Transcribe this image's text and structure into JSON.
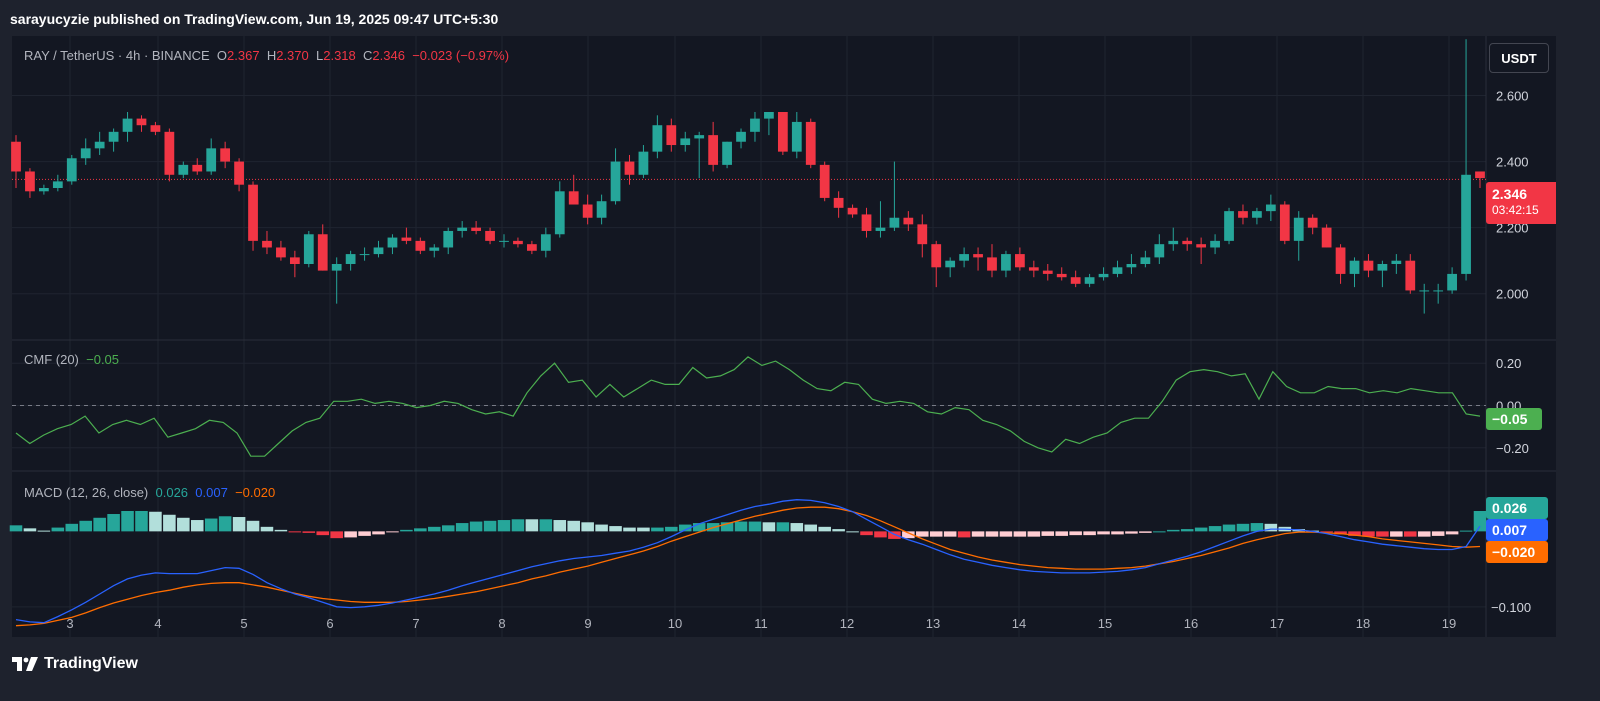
{
  "publisher_line": "sarayucyzie published on TradingView.com, Jun 19, 2025 09:47 UTC+5:30",
  "header": {
    "symbol": "RAY / TetherUS · 4h · BINANCE",
    "o_label": "O",
    "o_value": "2.367",
    "h_label": "H",
    "h_value": "2.370",
    "l_label": "L",
    "l_value": "2.318",
    "c_label": "C",
    "c_value": "2.346",
    "change": "−0.023 (−0.97%)"
  },
  "currency_button": "USDT",
  "price_tag": {
    "value": "2.346",
    "countdown": "03:42:15"
  },
  "cmf_legend": {
    "label": "CMF (20)",
    "value": "−0.05"
  },
  "cmf_tag": "−0.05",
  "macd_legend": {
    "label": "MACD (12, 26, close)",
    "hist": "0.026",
    "macd": "0.007",
    "signal": "−0.020"
  },
  "macd_tags": {
    "hist": "0.026",
    "macd": "0.007",
    "signal": "−0.020"
  },
  "footer": {
    "logo_text": "TradingView"
  },
  "colors": {
    "up": "#26a69a",
    "down": "#f23645",
    "cmf": "#4caf50",
    "macd": "#2962ff",
    "signal": "#ff6d00",
    "hist_up_light": "#b2dfdb",
    "hist_down_light": "#ffcdd2"
  },
  "chart_data": [
    {
      "type": "candlestick",
      "title": "RAY / TetherUS · 4h · BINANCE",
      "x_tick_labels": [
        "3",
        "4",
        "5",
        "6",
        "7",
        "8",
        "9",
        "10",
        "11",
        "12",
        "13",
        "14",
        "15",
        "16",
        "17",
        "18",
        "19"
      ],
      "y_tick_labels": [
        "2.000",
        "2.200",
        "2.400",
        "2.600"
      ],
      "ylim": [
        1.86,
        2.78
      ],
      "last_price_line": 2.346,
      "ohlc": [
        [
          2.46,
          2.48,
          2.32,
          2.37
        ],
        [
          2.37,
          2.38,
          2.29,
          2.31
        ],
        [
          2.31,
          2.33,
          2.3,
          2.32
        ],
        [
          2.32,
          2.36,
          2.31,
          2.34
        ],
        [
          2.34,
          2.42,
          2.33,
          2.41
        ],
        [
          2.41,
          2.47,
          2.39,
          2.44
        ],
        [
          2.44,
          2.49,
          2.42,
          2.46
        ],
        [
          2.46,
          2.5,
          2.43,
          2.49
        ],
        [
          2.49,
          2.55,
          2.46,
          2.53
        ],
        [
          2.53,
          2.54,
          2.49,
          2.51
        ],
        [
          2.51,
          2.52,
          2.48,
          2.49
        ],
        [
          2.49,
          2.5,
          2.34,
          2.36
        ],
        [
          2.36,
          2.4,
          2.35,
          2.39
        ],
        [
          2.39,
          2.41,
          2.36,
          2.37
        ],
        [
          2.37,
          2.47,
          2.36,
          2.44
        ],
        [
          2.44,
          2.46,
          2.38,
          2.4
        ],
        [
          2.4,
          2.41,
          2.31,
          2.33
        ],
        [
          2.33,
          2.34,
          2.13,
          2.16
        ],
        [
          2.16,
          2.19,
          2.12,
          2.14
        ],
        [
          2.14,
          2.16,
          2.1,
          2.11
        ],
        [
          2.11,
          2.13,
          2.05,
          2.09
        ],
        [
          2.09,
          2.19,
          2.08,
          2.18
        ],
        [
          2.18,
          2.21,
          2.07,
          2.07
        ],
        [
          2.07,
          2.11,
          1.97,
          2.09
        ],
        [
          2.09,
          2.13,
          2.07,
          2.12
        ],
        [
          2.12,
          2.14,
          2.1,
          2.12
        ],
        [
          2.12,
          2.16,
          2.11,
          2.14
        ],
        [
          2.14,
          2.18,
          2.12,
          2.17
        ],
        [
          2.17,
          2.2,
          2.15,
          2.16
        ],
        [
          2.16,
          2.17,
          2.12,
          2.13
        ],
        [
          2.13,
          2.15,
          2.11,
          2.14
        ],
        [
          2.14,
          2.2,
          2.12,
          2.19
        ],
        [
          2.19,
          2.22,
          2.17,
          2.2
        ],
        [
          2.2,
          2.22,
          2.18,
          2.19
        ],
        [
          2.19,
          2.2,
          2.15,
          2.16
        ],
        [
          2.16,
          2.18,
          2.14,
          2.16
        ],
        [
          2.16,
          2.17,
          2.14,
          2.15
        ],
        [
          2.15,
          2.16,
          2.12,
          2.13
        ],
        [
          2.13,
          2.2,
          2.11,
          2.18
        ],
        [
          2.18,
          2.34,
          2.17,
          2.31
        ],
        [
          2.31,
          2.36,
          2.27,
          2.27
        ],
        [
          2.27,
          2.3,
          2.21,
          2.23
        ],
        [
          2.23,
          2.3,
          2.21,
          2.28
        ],
        [
          2.28,
          2.44,
          2.27,
          2.4
        ],
        [
          2.4,
          2.42,
          2.33,
          2.36
        ],
        [
          2.36,
          2.45,
          2.35,
          2.43
        ],
        [
          2.43,
          2.54,
          2.41,
          2.51
        ],
        [
          2.51,
          2.53,
          2.43,
          2.45
        ],
        [
          2.45,
          2.49,
          2.43,
          2.47
        ],
        [
          2.47,
          2.49,
          2.35,
          2.48
        ],
        [
          2.48,
          2.52,
          2.37,
          2.39
        ],
        [
          2.39,
          2.46,
          2.38,
          2.46
        ],
        [
          2.46,
          2.5,
          2.44,
          2.49
        ],
        [
          2.49,
          2.55,
          2.46,
          2.53
        ],
        [
          2.53,
          2.55,
          2.48,
          2.55
        ],
        [
          2.55,
          2.55,
          2.42,
          2.43
        ],
        [
          2.43,
          2.55,
          2.41,
          2.52
        ],
        [
          2.52,
          2.53,
          2.38,
          2.39
        ],
        [
          2.39,
          2.4,
          2.28,
          2.29
        ],
        [
          2.29,
          2.31,
          2.23,
          2.26
        ],
        [
          2.26,
          2.27,
          2.23,
          2.24
        ],
        [
          2.24,
          2.26,
          2.17,
          2.19
        ],
        [
          2.19,
          2.28,
          2.17,
          2.2
        ],
        [
          2.2,
          2.4,
          2.19,
          2.23
        ],
        [
          2.23,
          2.25,
          2.19,
          2.21
        ],
        [
          2.21,
          2.24,
          2.11,
          2.15
        ],
        [
          2.15,
          2.16,
          2.02,
          2.08
        ],
        [
          2.08,
          2.11,
          2.05,
          2.1
        ],
        [
          2.1,
          2.14,
          2.08,
          2.12
        ],
        [
          2.12,
          2.14,
          2.07,
          2.11
        ],
        [
          2.11,
          2.15,
          2.05,
          2.07
        ],
        [
          2.07,
          2.13,
          2.05,
          2.12
        ],
        [
          2.12,
          2.14,
          2.07,
          2.08
        ],
        [
          2.08,
          2.1,
          2.05,
          2.07
        ],
        [
          2.07,
          2.09,
          2.04,
          2.06
        ],
        [
          2.06,
          2.08,
          2.04,
          2.05
        ],
        [
          2.05,
          2.07,
          2.02,
          2.03
        ],
        [
          2.03,
          2.06,
          2.02,
          2.05
        ],
        [
          2.05,
          2.08,
          2.04,
          2.06
        ],
        [
          2.06,
          2.1,
          2.05,
          2.08
        ],
        [
          2.08,
          2.12,
          2.06,
          2.09
        ],
        [
          2.09,
          2.13,
          2.08,
          2.11
        ],
        [
          2.11,
          2.18,
          2.09,
          2.15
        ],
        [
          2.15,
          2.2,
          2.13,
          2.16
        ],
        [
          2.16,
          2.17,
          2.13,
          2.15
        ],
        [
          2.15,
          2.17,
          2.09,
          2.14
        ],
        [
          2.14,
          2.18,
          2.12,
          2.16
        ],
        [
          2.16,
          2.26,
          2.15,
          2.25
        ],
        [
          2.25,
          2.27,
          2.21,
          2.23
        ],
        [
          2.23,
          2.26,
          2.21,
          2.25
        ],
        [
          2.25,
          2.3,
          2.22,
          2.27
        ],
        [
          2.27,
          2.28,
          2.15,
          2.16
        ],
        [
          2.16,
          2.25,
          2.1,
          2.23
        ],
        [
          2.23,
          2.24,
          2.18,
          2.2
        ],
        [
          2.2,
          2.21,
          2.14,
          2.14
        ],
        [
          2.14,
          2.15,
          2.03,
          2.06
        ],
        [
          2.06,
          2.11,
          2.02,
          2.1
        ],
        [
          2.1,
          2.12,
          2.05,
          2.07
        ],
        [
          2.07,
          2.1,
          2.02,
          2.09
        ],
        [
          2.09,
          2.12,
          2.06,
          2.1
        ],
        [
          2.1,
          2.12,
          2.0,
          2.01
        ],
        [
          2.01,
          2.03,
          1.94,
          2.01
        ],
        [
          2.01,
          2.03,
          1.97,
          2.01
        ],
        [
          2.01,
          2.08,
          2.0,
          2.06
        ],
        [
          2.06,
          2.77,
          2.04,
          2.36
        ],
        [
          2.37,
          2.37,
          2.32,
          2.35
        ]
      ]
    },
    {
      "type": "line",
      "title": "CMF (20)",
      "y_tick_labels": [
        "0.20",
        "0.00",
        "−0.20"
      ],
      "ylim": [
        -0.31,
        0.31
      ],
      "reference_line": 0,
      "values": [
        -0.13,
        -0.18,
        -0.14,
        -0.11,
        -0.09,
        -0.05,
        -0.13,
        -0.09,
        -0.07,
        -0.09,
        -0.06,
        -0.15,
        -0.13,
        -0.11,
        -0.07,
        -0.08,
        -0.13,
        -0.24,
        -0.24,
        -0.18,
        -0.12,
        -0.08,
        -0.06,
        0.02,
        0.02,
        0.03,
        0.01,
        0.02,
        0.01,
        -0.01,
        0.0,
        0.02,
        0.01,
        -0.02,
        -0.04,
        -0.03,
        -0.05,
        0.06,
        0.14,
        0.2,
        0.11,
        0.12,
        0.04,
        0.1,
        0.04,
        0.08,
        0.12,
        0.1,
        0.1,
        0.18,
        0.13,
        0.14,
        0.17,
        0.23,
        0.19,
        0.21,
        0.17,
        0.12,
        0.08,
        0.07,
        0.11,
        0.1,
        0.03,
        0.01,
        0.02,
        0.01,
        -0.03,
        -0.04,
        -0.01,
        -0.02,
        -0.07,
        -0.09,
        -0.12,
        -0.17,
        -0.2,
        -0.22,
        -0.16,
        -0.18,
        -0.15,
        -0.13,
        -0.08,
        -0.06,
        -0.06,
        0.02,
        0.12,
        0.16,
        0.17,
        0.16,
        0.14,
        0.15,
        0.03,
        0.16,
        0.09,
        0.06,
        0.06,
        0.09,
        0.08,
        0.08,
        0.06,
        0.07,
        0.06,
        0.08,
        0.07,
        0.06,
        0.06,
        -0.04,
        -0.05
      ]
    },
    {
      "type": "line+histogram",
      "title": "MACD (12, 26, close)",
      "y_tick_labels": [
        "−0.100"
      ],
      "ylim": [
        -0.14,
        0.08
      ],
      "series_legend_values": {
        "histogram": "0.026",
        "macd": "0.007",
        "signal": "−0.020"
      },
      "macd": [
        -0.117,
        -0.12,
        -0.121,
        -0.113,
        -0.104,
        -0.094,
        -0.083,
        -0.072,
        -0.063,
        -0.058,
        -0.055,
        -0.056,
        -0.056,
        -0.056,
        -0.052,
        -0.048,
        -0.049,
        -0.057,
        -0.068,
        -0.076,
        -0.083,
        -0.088,
        -0.094,
        -0.1,
        -0.101,
        -0.1,
        -0.098,
        -0.095,
        -0.091,
        -0.087,
        -0.083,
        -0.078,
        -0.072,
        -0.067,
        -0.062,
        -0.057,
        -0.052,
        -0.047,
        -0.043,
        -0.039,
        -0.036,
        -0.034,
        -0.032,
        -0.029,
        -0.026,
        -0.021,
        -0.015,
        -0.007,
        0.002,
        0.01,
        0.016,
        0.022,
        0.028,
        0.033,
        0.036,
        0.04,
        0.042,
        0.041,
        0.038,
        0.033,
        0.026,
        0.016,
        0.006,
        -0.004,
        -0.011,
        -0.017,
        -0.024,
        -0.031,
        -0.037,
        -0.041,
        -0.045,
        -0.048,
        -0.051,
        -0.053,
        -0.054,
        -0.055,
        -0.055,
        -0.055,
        -0.054,
        -0.053,
        -0.051,
        -0.048,
        -0.043,
        -0.038,
        -0.033,
        -0.027,
        -0.02,
        -0.013,
        -0.006,
        0.0,
        0.003,
        0.003,
        0.002,
        0.0,
        -0.003,
        -0.007,
        -0.011,
        -0.014,
        -0.017,
        -0.019,
        -0.021,
        -0.023,
        -0.024,
        -0.024,
        -0.02,
        0.007
      ],
      "signal": [
        -0.125,
        -0.124,
        -0.122,
        -0.118,
        -0.114,
        -0.108,
        -0.101,
        -0.095,
        -0.09,
        -0.085,
        -0.081,
        -0.078,
        -0.074,
        -0.071,
        -0.069,
        -0.068,
        -0.068,
        -0.071,
        -0.074,
        -0.078,
        -0.082,
        -0.086,
        -0.089,
        -0.091,
        -0.093,
        -0.094,
        -0.094,
        -0.094,
        -0.093,
        -0.091,
        -0.089,
        -0.086,
        -0.083,
        -0.08,
        -0.076,
        -0.072,
        -0.068,
        -0.063,
        -0.059,
        -0.054,
        -0.05,
        -0.046,
        -0.041,
        -0.036,
        -0.031,
        -0.026,
        -0.02,
        -0.013,
        -0.007,
        -0.001,
        0.005,
        0.01,
        0.015,
        0.02,
        0.024,
        0.028,
        0.031,
        0.032,
        0.032,
        0.03,
        0.026,
        0.021,
        0.014,
        0.006,
        -0.002,
        -0.01,
        -0.017,
        -0.024,
        -0.029,
        -0.034,
        -0.038,
        -0.041,
        -0.044,
        -0.046,
        -0.048,
        -0.049,
        -0.05,
        -0.05,
        -0.05,
        -0.049,
        -0.048,
        -0.046,
        -0.043,
        -0.04,
        -0.036,
        -0.032,
        -0.027,
        -0.022,
        -0.016,
        -0.011,
        -0.007,
        -0.003,
        -0.001,
        -0.001,
        -0.002,
        -0.003,
        -0.005,
        -0.007,
        -0.01,
        -0.012,
        -0.014,
        -0.016,
        -0.018,
        -0.02,
        -0.021,
        -0.02
      ]
    }
  ]
}
